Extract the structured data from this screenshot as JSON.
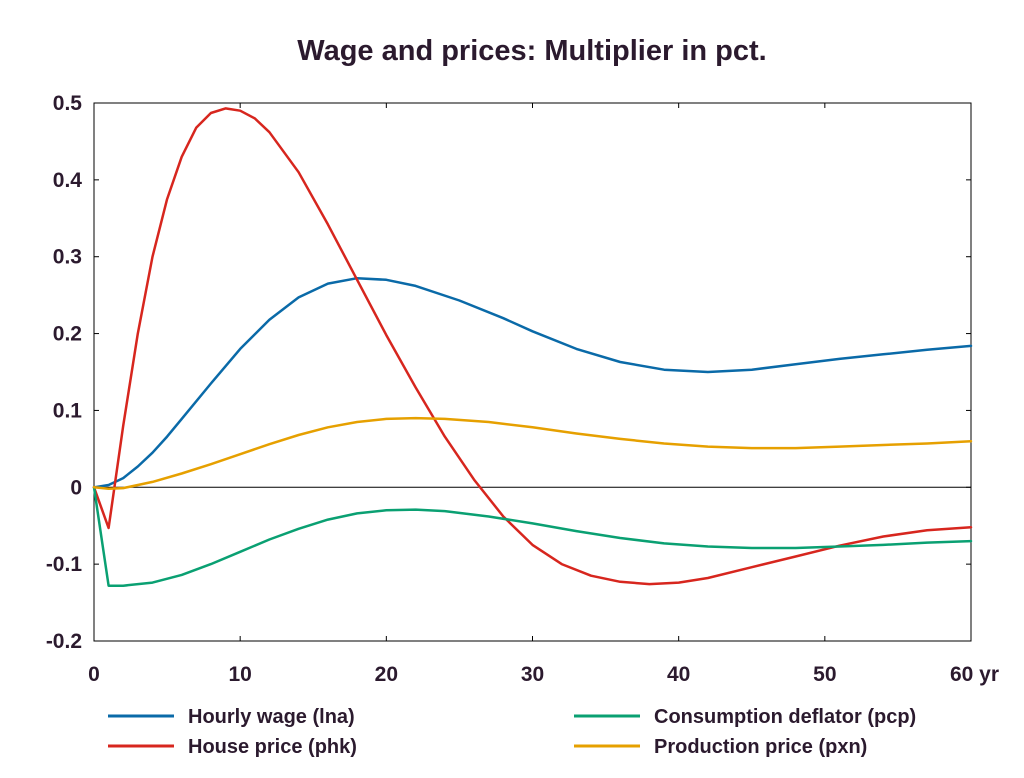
{
  "chart_data": {
    "type": "line",
    "title": "Wage and prices: Multiplier in pct.",
    "xlim": [
      0,
      60
    ],
    "ylim": [
      -0.2,
      0.5
    ],
    "x_ticks": [
      0,
      10,
      20,
      30,
      40,
      50,
      60
    ],
    "x_tick_labels": [
      "0",
      "10",
      "20",
      "30",
      "40",
      "50",
      "60 yr"
    ],
    "y_ticks": [
      -0.2,
      -0.1,
      0,
      0.1,
      0.2,
      0.3,
      0.4,
      0.5
    ],
    "y_tick_labels": [
      "-0.2",
      "-0.1",
      "0",
      "0.1",
      "0.2",
      "0.3",
      "0.4",
      "0.5"
    ],
    "grid": false,
    "zero_line": true,
    "legend_position": "bottom",
    "series": [
      {
        "name": "Hourly wage (lna)",
        "color": "#0a6aa8",
        "points": [
          [
            0,
            0
          ],
          [
            1,
            0.003
          ],
          [
            2,
            0.012
          ],
          [
            3,
            0.027
          ],
          [
            4,
            0.045
          ],
          [
            5,
            0.066
          ],
          [
            6,
            0.089
          ],
          [
            8,
            0.135
          ],
          [
            10,
            0.18
          ],
          [
            12,
            0.218
          ],
          [
            14,
            0.247
          ],
          [
            16,
            0.265
          ],
          [
            18,
            0.272
          ],
          [
            20,
            0.27
          ],
          [
            22,
            0.262
          ],
          [
            25,
            0.243
          ],
          [
            28,
            0.22
          ],
          [
            30,
            0.203
          ],
          [
            33,
            0.18
          ],
          [
            36,
            0.163
          ],
          [
            39,
            0.153
          ],
          [
            42,
            0.15
          ],
          [
            45,
            0.153
          ],
          [
            48,
            0.16
          ],
          [
            51,
            0.167
          ],
          [
            54,
            0.173
          ],
          [
            57,
            0.179
          ],
          [
            60,
            0.184
          ]
        ]
      },
      {
        "name": "House price (phk)",
        "color": "#d7261e",
        "points": [
          [
            0,
            0
          ],
          [
            1,
            -0.053
          ],
          [
            2,
            0.08
          ],
          [
            3,
            0.2
          ],
          [
            4,
            0.3
          ],
          [
            5,
            0.375
          ],
          [
            6,
            0.43
          ],
          [
            7,
            0.468
          ],
          [
            8,
            0.487
          ],
          [
            9,
            0.493
          ],
          [
            10,
            0.49
          ],
          [
            11,
            0.48
          ],
          [
            12,
            0.462
          ],
          [
            14,
            0.41
          ],
          [
            16,
            0.342
          ],
          [
            18,
            0.27
          ],
          [
            20,
            0.198
          ],
          [
            22,
            0.13
          ],
          [
            24,
            0.066
          ],
          [
            26,
            0.01
          ],
          [
            28,
            -0.038
          ],
          [
            30,
            -0.075
          ],
          [
            32,
            -0.1
          ],
          [
            34,
            -0.115
          ],
          [
            36,
            -0.123
          ],
          [
            38,
            -0.126
          ],
          [
            40,
            -0.124
          ],
          [
            42,
            -0.118
          ],
          [
            45,
            -0.104
          ],
          [
            48,
            -0.09
          ],
          [
            51,
            -0.076
          ],
          [
            54,
            -0.064
          ],
          [
            57,
            -0.056
          ],
          [
            60,
            -0.052
          ]
        ]
      },
      {
        "name": "Consumption deflator (pcp)",
        "color": "#0aa072",
        "points": [
          [
            0,
            0
          ],
          [
            1,
            -0.128
          ],
          [
            2,
            -0.128
          ],
          [
            4,
            -0.124
          ],
          [
            6,
            -0.114
          ],
          [
            8,
            -0.1
          ],
          [
            10,
            -0.084
          ],
          [
            12,
            -0.068
          ],
          [
            14,
            -0.054
          ],
          [
            16,
            -0.042
          ],
          [
            18,
            -0.034
          ],
          [
            20,
            -0.03
          ],
          [
            22,
            -0.029
          ],
          [
            24,
            -0.031
          ],
          [
            27,
            -0.038
          ],
          [
            30,
            -0.047
          ],
          [
            33,
            -0.057
          ],
          [
            36,
            -0.066
          ],
          [
            39,
            -0.073
          ],
          [
            42,
            -0.077
          ],
          [
            45,
            -0.079
          ],
          [
            48,
            -0.079
          ],
          [
            51,
            -0.077
          ],
          [
            54,
            -0.075
          ],
          [
            57,
            -0.072
          ],
          [
            60,
            -0.07
          ]
        ]
      },
      {
        "name": "Production price (pxn)",
        "color": "#e6a000",
        "points": [
          [
            0,
            0
          ],
          [
            1,
            -0.002
          ],
          [
            2,
            -0.001
          ],
          [
            4,
            0.007
          ],
          [
            6,
            0.018
          ],
          [
            8,
            0.03
          ],
          [
            10,
            0.043
          ],
          [
            12,
            0.056
          ],
          [
            14,
            0.068
          ],
          [
            16,
            0.078
          ],
          [
            18,
            0.085
          ],
          [
            20,
            0.089
          ],
          [
            22,
            0.09
          ],
          [
            24,
            0.089
          ],
          [
            27,
            0.085
          ],
          [
            30,
            0.078
          ],
          [
            33,
            0.07
          ],
          [
            36,
            0.063
          ],
          [
            39,
            0.057
          ],
          [
            42,
            0.053
          ],
          [
            45,
            0.051
          ],
          [
            48,
            0.051
          ],
          [
            51,
            0.053
          ],
          [
            54,
            0.055
          ],
          [
            57,
            0.057
          ],
          [
            60,
            0.06
          ]
        ]
      }
    ]
  }
}
